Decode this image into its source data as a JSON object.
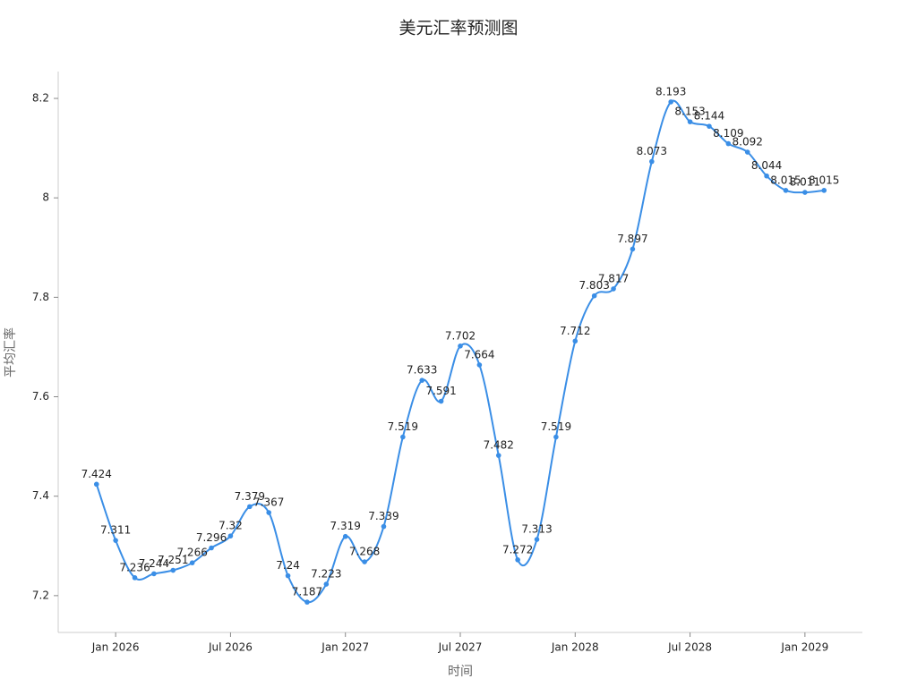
{
  "chart_data": {
    "type": "line",
    "title": "美元汇率预测图",
    "x_label": "时间",
    "y_label": "平均汇率",
    "x": [
      "2025-12",
      "2026-01",
      "2026-02",
      "2026-03",
      "2026-04",
      "2026-05",
      "2026-06",
      "2026-07",
      "2026-08",
      "2026-09",
      "2026-10",
      "2026-11",
      "2026-12",
      "2027-01",
      "2027-02",
      "2027-03",
      "2027-04",
      "2027-05",
      "2027-06",
      "2027-07",
      "2027-08",
      "2027-09",
      "2027-10",
      "2027-11",
      "2027-12",
      "2028-01",
      "2028-02",
      "2028-03",
      "2028-04",
      "2028-05",
      "2028-06",
      "2028-07",
      "2028-08",
      "2028-09",
      "2028-10",
      "2028-11",
      "2028-12",
      "2029-01",
      "2029-02"
    ],
    "series": [
      {
        "name": "平均汇率",
        "color": "#3a8ee6",
        "values": [
          7.424,
          7.311,
          7.236,
          7.244,
          7.251,
          7.266,
          7.296,
          7.32,
          7.379,
          7.367,
          7.24,
          7.187,
          7.223,
          7.319,
          7.268,
          7.339,
          7.519,
          7.633,
          7.591,
          7.702,
          7.664,
          7.482,
          7.272,
          7.313,
          7.519,
          7.712,
          7.803,
          7.817,
          7.897,
          8.073,
          8.193,
          8.153,
          8.144,
          8.109,
          8.092,
          8.044,
          8.015,
          8.011,
          8.015
        ]
      }
    ],
    "xlim": [
      "2025-10",
      "2029-04"
    ],
    "xticks": [
      {
        "value": "2026-01",
        "label": "Jan 2026"
      },
      {
        "value": "2026-07",
        "label": "Jul 2026"
      },
      {
        "value": "2027-01",
        "label": "Jan 2027"
      },
      {
        "value": "2027-07",
        "label": "Jul 2027"
      },
      {
        "value": "2028-01",
        "label": "Jan 2028"
      },
      {
        "value": "2028-07",
        "label": "Jul 2028"
      },
      {
        "value": "2029-01",
        "label": "Jan 2029"
      }
    ],
    "ylim": [
      7.126,
      8.254
    ],
    "yticks": [
      7.2,
      7.4,
      7.6,
      7.8,
      8,
      8.2
    ],
    "grid": false
  }
}
